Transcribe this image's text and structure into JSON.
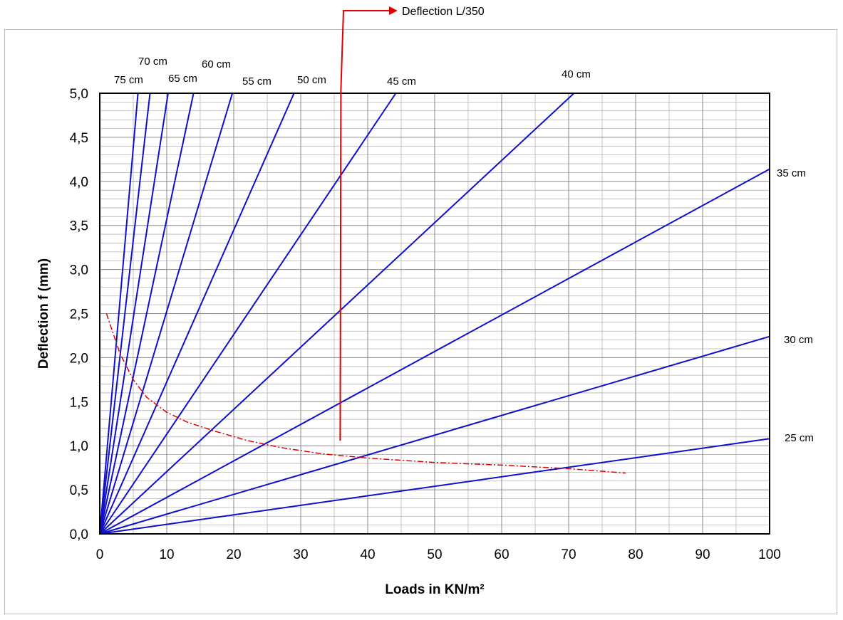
{
  "chart_data": {
    "type": "line",
    "xlabel": "Loads in KN/m²",
    "ylabel": "Deflection f (mm)",
    "xlim": [
      0,
      100
    ],
    "ylim": [
      0,
      5
    ],
    "x_ticks": [
      "0",
      "10",
      "20",
      "30",
      "40",
      "50",
      "60",
      "70",
      "80",
      "90",
      "100"
    ],
    "y_ticks": [
      "0,0",
      "0,5",
      "1,0",
      "1,5",
      "2,0",
      "2,5",
      "3,0",
      "3,5",
      "4,0",
      "4,5",
      "5,0"
    ],
    "grid": true,
    "series": [
      {
        "name": "25 cm",
        "points": [
          [
            0,
            0
          ],
          [
            100,
            1.08
          ]
        ]
      },
      {
        "name": "30 cm",
        "points": [
          [
            0,
            0
          ],
          [
            100,
            2.24
          ]
        ]
      },
      {
        "name": "35 cm",
        "points": [
          [
            0,
            0
          ],
          [
            100,
            4.14
          ]
        ]
      },
      {
        "name": "40 cm",
        "points": [
          [
            0,
            0
          ],
          [
            70.8,
            5.0
          ]
        ]
      },
      {
        "name": "45 cm",
        "points": [
          [
            0,
            0
          ],
          [
            44.2,
            5.0
          ]
        ]
      },
      {
        "name": "50 cm",
        "points": [
          [
            0,
            0
          ],
          [
            29.0,
            5.0
          ]
        ]
      },
      {
        "name": "55 cm",
        "points": [
          [
            0,
            0
          ],
          [
            19.8,
            5.0
          ]
        ]
      },
      {
        "name": "60 cm",
        "points": [
          [
            0,
            0
          ],
          [
            14.0,
            5.0
          ]
        ]
      },
      {
        "name": "65 cm",
        "points": [
          [
            0,
            0
          ],
          [
            10.2,
            5.0
          ]
        ]
      },
      {
        "name": "70 cm",
        "points": [
          [
            0,
            0
          ],
          [
            7.5,
            5.0
          ]
        ]
      },
      {
        "name": "75 cm",
        "points": [
          [
            0,
            0
          ],
          [
            5.7,
            5.0
          ]
        ]
      }
    ],
    "limit_curve": {
      "points": [
        [
          1.0,
          2.5
        ],
        [
          3.0,
          2.05
        ],
        [
          5.0,
          1.75
        ],
        [
          7.0,
          1.55
        ],
        [
          10.0,
          1.38
        ],
        [
          13.0,
          1.27
        ],
        [
          17.0,
          1.17
        ],
        [
          22.0,
          1.06
        ],
        [
          27.0,
          0.98
        ],
        [
          33.0,
          0.91
        ],
        [
          40.0,
          0.86
        ],
        [
          50.0,
          0.81
        ],
        [
          60.0,
          0.78
        ],
        [
          70.0,
          0.74
        ],
        [
          78.5,
          0.69
        ]
      ],
      "color": "#e00000"
    },
    "annotation": {
      "text": "Deflection L/350",
      "x": 36,
      "color": "#e00000"
    },
    "line_color": "#1010cc"
  }
}
